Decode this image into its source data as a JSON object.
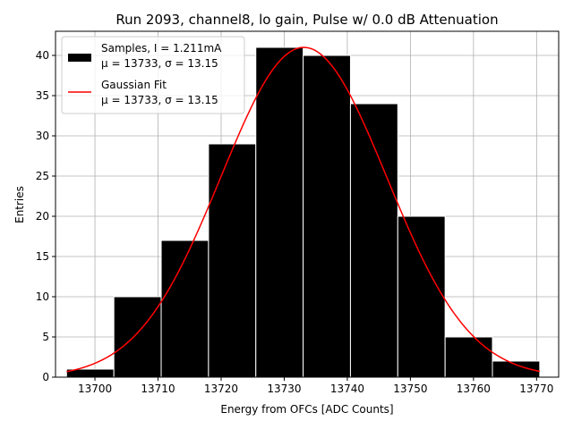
{
  "chart_data": {
    "type": "bar",
    "title": "Run 2093, channel8, lo gain, Pulse w/ 0.0 dB Attenuation",
    "xlabel": "Energy from OFCs [ADC Counts]",
    "ylabel": "Entries",
    "xlim": [
      13693.75,
      13773.5
    ],
    "ylim": [
      0,
      43
    ],
    "xticks": [
      13700,
      13710,
      13720,
      13730,
      13740,
      13750,
      13760,
      13770
    ],
    "yticks": [
      0,
      5,
      10,
      15,
      20,
      25,
      30,
      35,
      40
    ],
    "grid": true,
    "legend_position": "top-left",
    "bins": [
      {
        "x0": 13695.5,
        "x1": 13703.0,
        "count": 1
      },
      {
        "x0": 13703.0,
        "x1": 13710.5,
        "count": 10
      },
      {
        "x0": 13710.5,
        "x1": 13718.0,
        "count": 17
      },
      {
        "x0": 13718.0,
        "x1": 13725.5,
        "count": 29
      },
      {
        "x0": 13725.5,
        "x1": 13733.0,
        "count": 41
      },
      {
        "x0": 13733.0,
        "x1": 13740.5,
        "count": 40
      },
      {
        "x0": 13740.5,
        "x1": 13748.0,
        "count": 34
      },
      {
        "x0": 13748.0,
        "x1": 13755.5,
        "count": 20
      },
      {
        "x0": 13755.5,
        "x1": 13763.0,
        "count": 5
      },
      {
        "x0": 13763.0,
        "x1": 13770.5,
        "count": 2
      }
    ],
    "fit": {
      "mu": 13733.1,
      "sigma": 13.15,
      "amplitude": 41,
      "x_range": [
        13695.5,
        13770.5
      ]
    },
    "series": [
      {
        "name": "Samples, I = 1.211mA",
        "detail": "μ = 13733, σ = 13.15",
        "color": "#000000"
      },
      {
        "name": "Gaussian Fit",
        "detail": "μ = 13733, σ = 13.15",
        "color": "#ff0000"
      }
    ]
  }
}
